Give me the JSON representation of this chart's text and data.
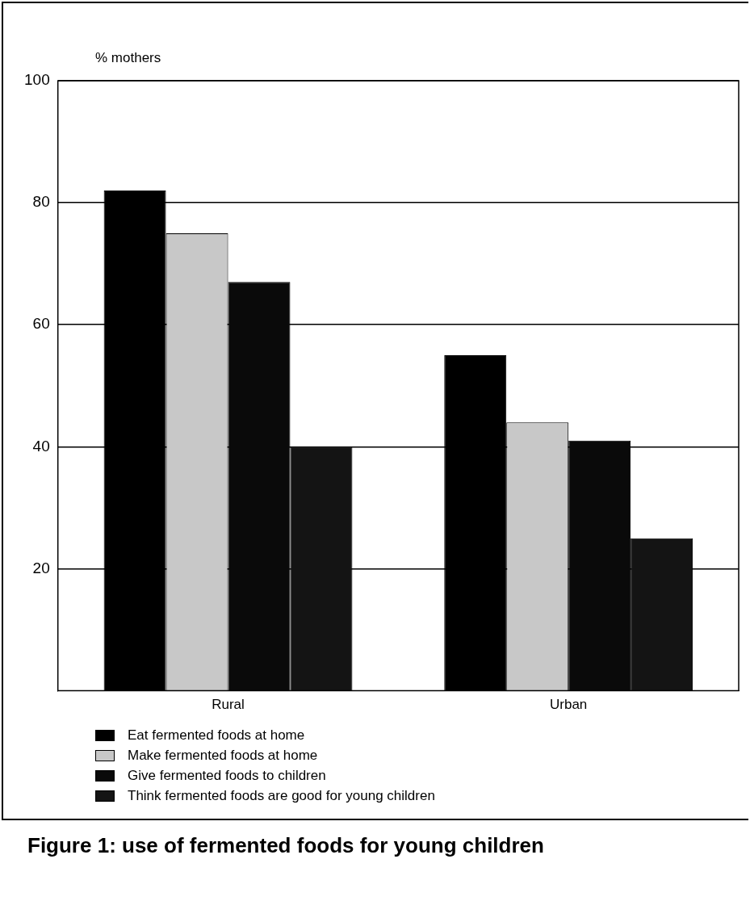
{
  "chart_data": {
    "type": "bar",
    "title": "Figure 1: use of fermented foods for young children",
    "ylabel": "% mothers",
    "categories": [
      "Rural",
      "Urban"
    ],
    "series": [
      {
        "name": "Eat fermented foods at home",
        "color": "#000000",
        "values": [
          82,
          55
        ]
      },
      {
        "name": "Make fermented foods at home",
        "color": "#c8c8c8",
        "values": [
          75,
          44
        ]
      },
      {
        "name": "Give fermented foods to children",
        "color": "#0a0a0a",
        "values": [
          67,
          41
        ]
      },
      {
        "name": "Think fermented foods are good for young children",
        "color": "#141414",
        "values": [
          40,
          25
        ]
      }
    ],
    "ylim": [
      0,
      100
    ],
    "yticks": [
      20,
      40,
      60,
      80,
      100
    ],
    "grid": "y",
    "legend": "bottom"
  }
}
